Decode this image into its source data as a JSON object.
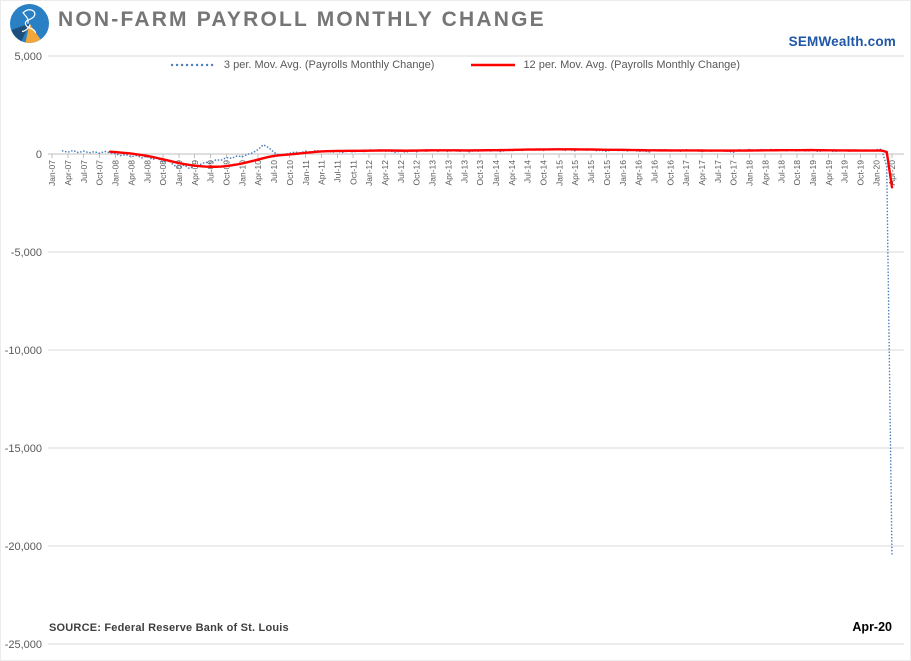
{
  "header": {
    "title": "NON-FARM PAYROLL MONTHLY CHANGE",
    "brand": "SEMWealth.com"
  },
  "footer": {
    "source": "SOURCE:  Federal Reserve Bank of St. Louis",
    "last_point_label": "Apr-20"
  },
  "colors": {
    "title_text": "#767676",
    "brand_text": "#1F56A5",
    "axis_text": "#595959",
    "gridline": "#D9D9D9",
    "axis_line": "#BFBFBF",
    "source_text": "#3F3F3F",
    "series_3ma": "#4F81BD",
    "series_12ma": "#FE0000",
    "logo_blue": "#2980C4",
    "logo_dark_blue": "#1C4F7C",
    "logo_orange": "#F3A73B"
  },
  "chart_data": {
    "type": "line",
    "title": "NON-FARM PAYROLL MONTHLY CHANGE",
    "xlabel": "",
    "ylabel": "",
    "grid": "horizontal",
    "legend_position": "top-center",
    "ylim": [
      -25000,
      5000
    ],
    "y_tick_values": [
      5000,
      0,
      -5000,
      -10000,
      -15000,
      -20000,
      -25000
    ],
    "y_tick_labels": [
      "5,000",
      "0",
      "-5,000",
      "-10,000",
      "-15,000",
      "-20,000",
      "-25,000"
    ],
    "n_points": 160,
    "months_per_tick": 3,
    "x_tick_labels": [
      "Jan-07",
      "Apr-07",
      "Jul-07",
      "Oct-07",
      "Jan-08",
      "Apr-08",
      "Jul-08",
      "Oct-08",
      "Jan-09",
      "Apr-09",
      "Jul-09",
      "Oct-09",
      "Jan-10",
      "Apr-10",
      "Jul-10",
      "Oct-10",
      "Jan-11",
      "Apr-11",
      "Jul-11",
      "Oct-11",
      "Jan-12",
      "Apr-12",
      "Jul-12",
      "Oct-12",
      "Jan-13",
      "Apr-13",
      "Jul-13",
      "Oct-13",
      "Jan-14",
      "Apr-14",
      "Jul-14",
      "Oct-14",
      "Jan-15",
      "Apr-15",
      "Jul-15",
      "Oct-15",
      "Jan-16",
      "Apr-16",
      "Jul-16",
      "Oct-16",
      "Jan-17",
      "Apr-17",
      "Jul-17",
      "Oct-17",
      "Jan-18",
      "Apr-18",
      "Jul-18",
      "Oct-18",
      "Jan-19",
      "Apr-19",
      "Jul-19",
      "Oct-19",
      "Jan-20",
      "Apr-20"
    ],
    "series": [
      {
        "name": "3 per. Mov. Avg. (Payrolls Monthly Change)",
        "style": "dotted",
        "color": "#4F81BD",
        "values": [
          null,
          null,
          160,
          90,
          180,
          70,
          150,
          60,
          120,
          40,
          130,
          60,
          10,
          -80,
          -30,
          -140,
          -80,
          -200,
          -120,
          -280,
          -200,
          -420,
          -300,
          -560,
          -700,
          -560,
          -740,
          -620,
          -540,
          -420,
          -460,
          -300,
          -320,
          -180,
          -220,
          -100,
          -140,
          -20,
          60,
          230,
          470,
          330,
          90,
          -60,
          -20,
          40,
          100,
          60,
          150,
          70,
          190,
          110,
          170,
          90,
          140,
          80,
          160,
          100,
          170,
          110,
          230,
          140,
          210,
          130,
          160,
          80,
          150,
          90,
          180,
          110,
          200,
          130,
          210,
          130,
          190,
          120,
          200,
          130,
          180,
          110,
          190,
          130,
          210,
          150,
          180,
          120,
          210,
          160,
          250,
          180,
          260,
          190,
          240,
          180,
          260,
          200,
          250,
          180,
          230,
          160,
          250,
          180,
          240,
          170,
          190,
          130,
          230,
          170,
          220,
          150,
          210,
          130,
          160,
          100,
          220,
          160,
          210,
          150,
          190,
          140,
          220,
          160,
          180,
          120,
          190,
          140,
          200,
          150,
          140,
          90,
          220,
          170,
          230,
          170,
          240,
          180,
          230,
          170,
          210,
          160,
          200,
          150,
          190,
          140,
          250,
          120,
          170,
          200,
          120,
          160,
          180,
          140,
          190,
          160,
          210,
          180,
          220,
          240,
          -620,
          -20500
        ]
      },
      {
        "name": "12 per. Mov. Avg. (Payrolls Monthly Change)",
        "style": "solid",
        "color": "#FE0000",
        "values": [
          null,
          null,
          null,
          null,
          null,
          null,
          null,
          null,
          null,
          null,
          null,
          120,
          100,
          75,
          50,
          20,
          -15,
          -55,
          -100,
          -150,
          -210,
          -270,
          -335,
          -400,
          -460,
          -515,
          -560,
          -595,
          -620,
          -640,
          -650,
          -650,
          -640,
          -615,
          -580,
          -535,
          -480,
          -420,
          -355,
          -285,
          -215,
          -150,
          -100,
          -65,
          -40,
          -20,
          5,
          30,
          60,
          85,
          110,
          130,
          142,
          150,
          155,
          158,
          160,
          162,
          164,
          166,
          170,
          175,
          178,
          180,
          178,
          175,
          172,
          170,
          172,
          175,
          180,
          185,
          188,
          190,
          190,
          188,
          186,
          185,
          184,
          184,
          185,
          188,
          192,
          195,
          196,
          198,
          202,
          208,
          214,
          220,
          225,
          228,
          230,
          232,
          235,
          238,
          240,
          240,
          238,
          236,
          234,
          232,
          230,
          226,
          220,
          216,
          214,
          212,
          210,
          206,
          202,
          198,
          192,
          188,
          186,
          185,
          185,
          184,
          183,
          182,
          182,
          181,
          180,
          178,
          177,
          177,
          176,
          175,
          172,
          173,
          175,
          176,
          178,
          181,
          184,
          187,
          190,
          192,
          193,
          195,
          196,
          197,
          197,
          198,
          200,
          196,
          192,
          190,
          186,
          182,
          180,
          178,
          178,
          177,
          177,
          176,
          176,
          178,
          105,
          -1700
        ]
      }
    ]
  }
}
